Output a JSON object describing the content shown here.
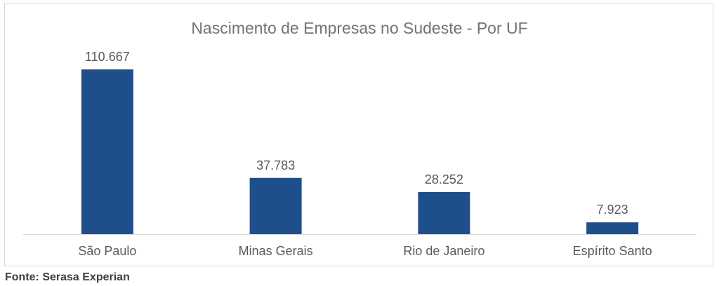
{
  "chart_data": {
    "type": "bar",
    "title": "Nascimento de Empresas no Sudeste - Por UF",
    "categories": [
      "São Paulo",
      "Minas Gerais",
      "Rio de Janeiro",
      "Espírito Santo"
    ],
    "values": [
      110667,
      37783,
      28252,
      7923
    ],
    "value_labels": [
      "110.667",
      "37.783",
      "28.252",
      "7.923"
    ],
    "xlabel": "",
    "ylabel": "",
    "ylim": [
      0,
      110667
    ],
    "grid": false,
    "legend": "none",
    "colors": {
      "bar": "#1f4e8c",
      "title": "#737373",
      "labels": "#595959",
      "axis": "#d9d9d9"
    }
  },
  "source": "Fonte: Serasa Experian"
}
